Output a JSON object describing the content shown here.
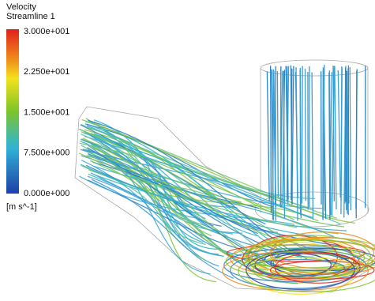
{
  "legend": {
    "title": "Velocity",
    "subtitle": "Streamline 1",
    "ticks": [
      "3.000e+001",
      "2.250e+001",
      "1.500e+001",
      "7.500e+000",
      "0.000e+000"
    ],
    "unit": "[m s^-1]"
  }
}
